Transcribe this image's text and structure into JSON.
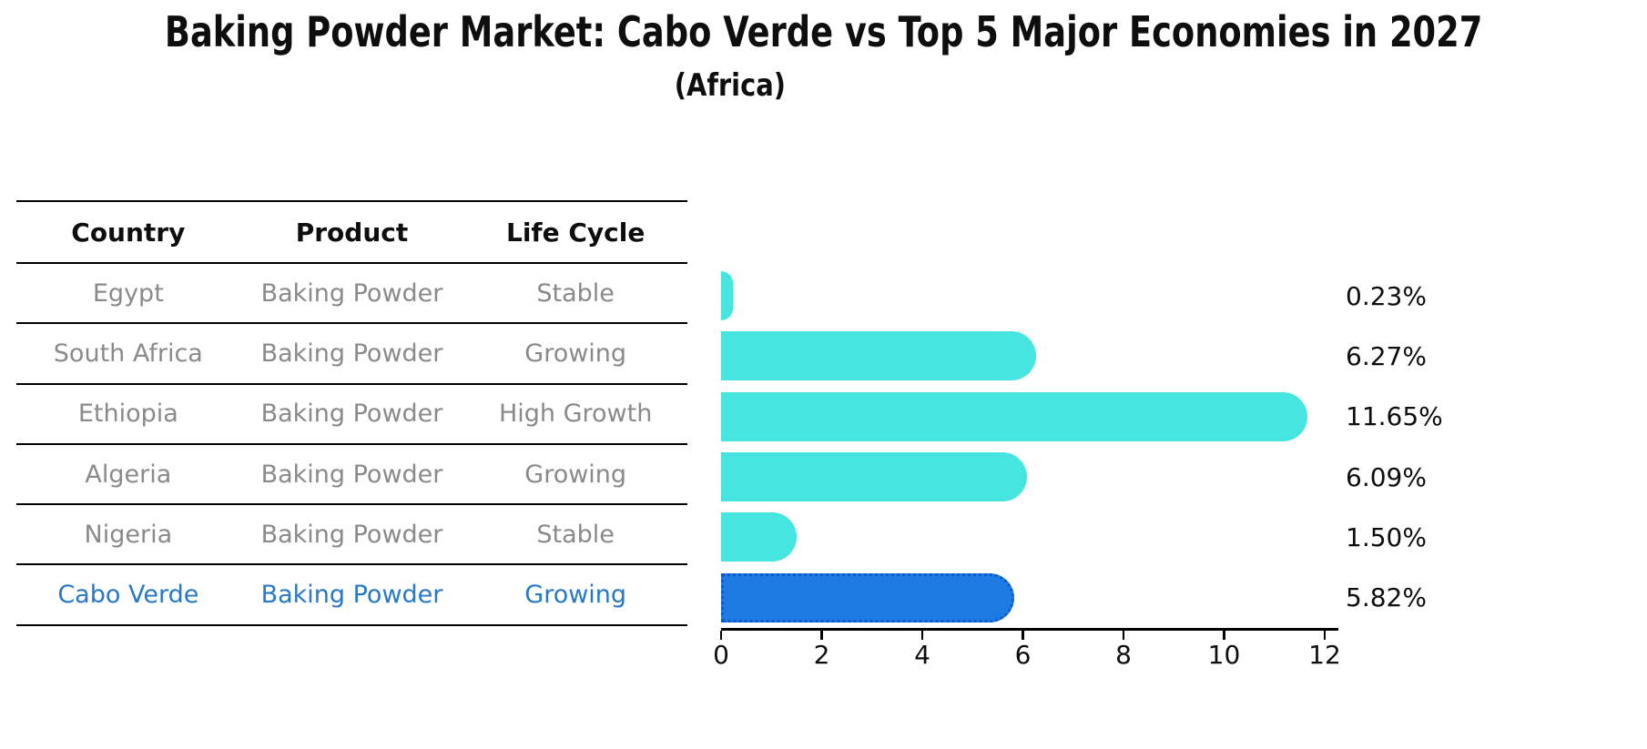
{
  "title": "Baking Powder Market: Cabo Verde vs Top 5 Major Economies in 2027",
  "subtitle": "(Africa)",
  "colors": {
    "background": "#ffffff",
    "text": "#0e0e0e",
    "row_text": "#8a8a8a",
    "highlight_text": "#2878C8",
    "bar_default": "#47E5E0",
    "bar_highlight": "#1E7BE4",
    "bar_highlight_border": "#0D5AC8"
  },
  "table": {
    "headers": [
      "Country",
      "Product",
      "Life Cycle"
    ],
    "rows": [
      {
        "country": "Egypt",
        "product": "Baking Powder",
        "life_cycle": "Stable",
        "highlight": false
      },
      {
        "country": "South Africa",
        "product": "Baking Powder",
        "life_cycle": "Growing",
        "highlight": false
      },
      {
        "country": "Ethiopia",
        "product": "Baking Powder",
        "life_cycle": "High Growth",
        "highlight": false
      },
      {
        "country": "Algeria",
        "product": "Baking Powder",
        "life_cycle": "Growing",
        "highlight": false
      },
      {
        "country": "Nigeria",
        "product": "Baking Powder",
        "life_cycle": "Stable",
        "highlight": false
      },
      {
        "country": "Cabo Verde",
        "product": "Baking Powder",
        "life_cycle": "Growing",
        "highlight": true
      }
    ]
  },
  "chart_data": {
    "type": "bar",
    "orientation": "horizontal",
    "title": "Baking Powder Market: Cabo Verde vs Top 5 Major Economies in 2027",
    "subtitle": "(Africa)",
    "categories": [
      "Egypt",
      "South Africa",
      "Ethiopia",
      "Algeria",
      "Nigeria",
      "Cabo Verde"
    ],
    "values": [
      0.23,
      6.27,
      11.65,
      6.09,
      1.5,
      5.82
    ],
    "value_labels": [
      "0.23%",
      "6.27%",
      "11.65%",
      "6.09%",
      "1.50%",
      "5.82%"
    ],
    "highlight_category": "Cabo Verde",
    "xlim": [
      0,
      12
    ],
    "xticks": [
      0,
      2,
      4,
      6,
      8,
      10,
      12
    ],
    "grid": false,
    "legend": false,
    "ylabel": "",
    "xlabel": ""
  }
}
